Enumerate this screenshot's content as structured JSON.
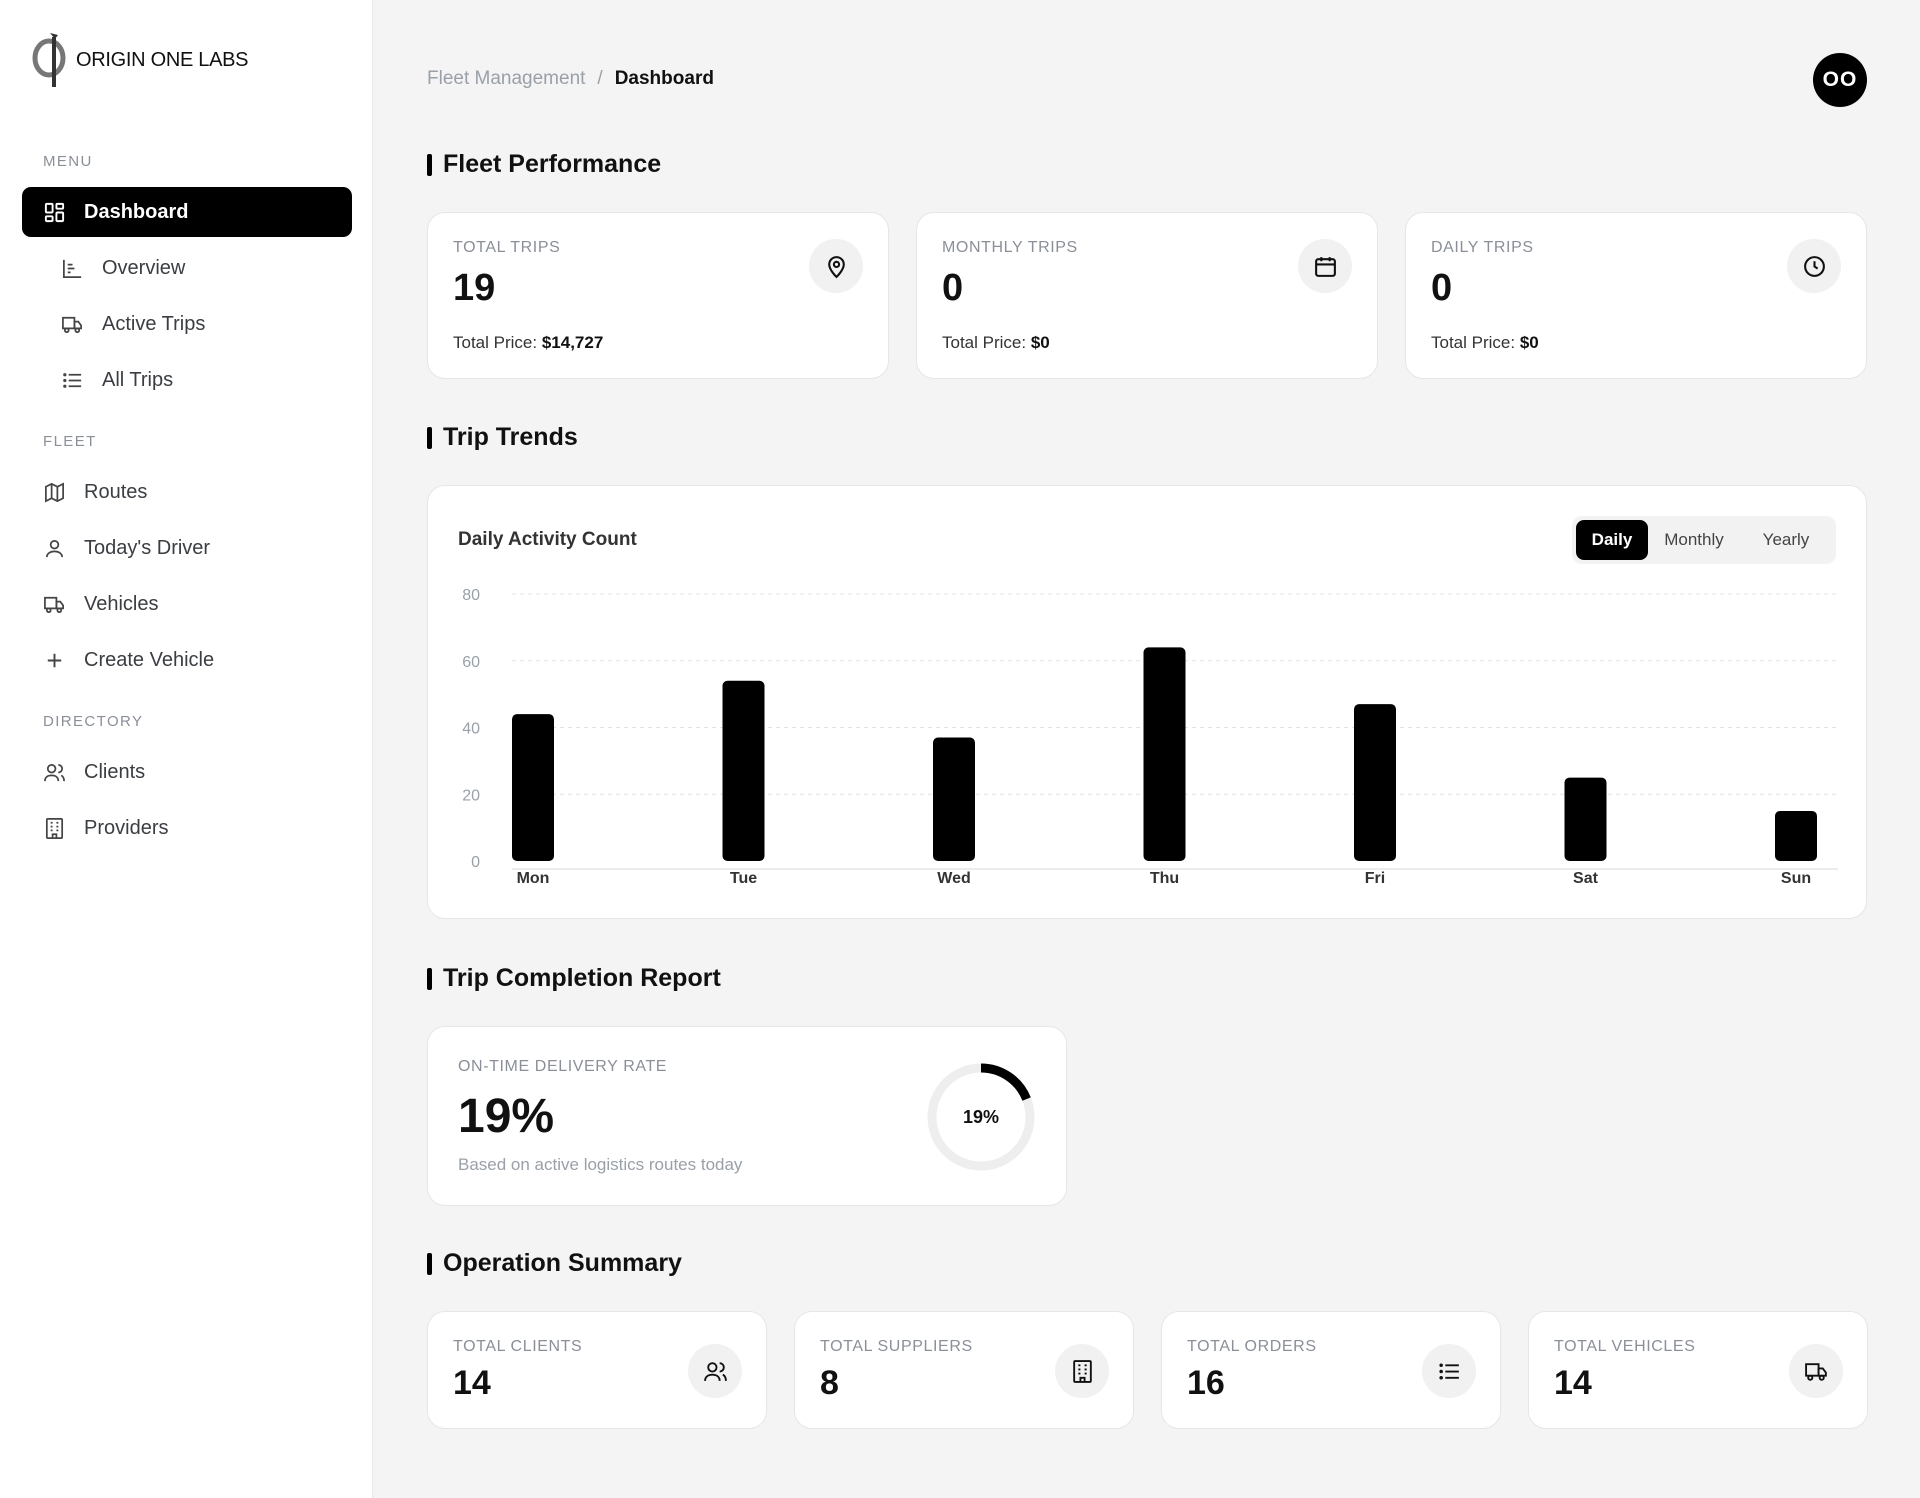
{
  "brand": {
    "name": "ORIGIN ONE LABS",
    "logo_icon": "origin-one-logo"
  },
  "sidebar": {
    "sections": [
      {
        "label": "MENU"
      },
      {
        "label": "FLEET"
      },
      {
        "label": "DIRECTORY"
      }
    ],
    "items": [
      {
        "label": "Dashboard",
        "icon": "dashboard-icon",
        "active": true
      },
      {
        "label": "Overview",
        "icon": "chart-icon"
      },
      {
        "label": "Active Trips",
        "icon": "truck-icon"
      },
      {
        "label": "All Trips",
        "icon": "list-icon"
      },
      {
        "label": "Routes",
        "icon": "map-icon"
      },
      {
        "label": "Today's Driver",
        "icon": "user-icon"
      },
      {
        "label": "Vehicles",
        "icon": "truck-icon"
      },
      {
        "label": "Create Vehicle",
        "icon": "plus-icon"
      },
      {
        "label": "Clients",
        "icon": "users-icon"
      },
      {
        "label": "Providers",
        "icon": "building-icon"
      }
    ]
  },
  "header": {
    "breadcrumb": {
      "parent": "Fleet Management",
      "separator": "/",
      "current": "Dashboard"
    },
    "avatar_initials": "OO"
  },
  "fleet_performance": {
    "title": "Fleet Performance",
    "cards": [
      {
        "label": "TOTAL TRIPS",
        "value": "19",
        "price_label": "Total Price:",
        "price": "$14,727",
        "icon": "map-pin-icon"
      },
      {
        "label": "MONTHLY TRIPS",
        "value": "0",
        "price_label": "Total Price:",
        "price": "$0",
        "icon": "calendar-icon"
      },
      {
        "label": "DAILY TRIPS",
        "value": "0",
        "price_label": "Total Price:",
        "price": "$0",
        "icon": "clock-icon"
      }
    ]
  },
  "trip_trends": {
    "title": "Trip Trends",
    "chart_title": "Daily Activity Count",
    "tabs": [
      "Daily",
      "Monthly",
      "Yearly"
    ],
    "active_tab": "Daily"
  },
  "chart_data": {
    "type": "bar",
    "title": "Daily Activity Count",
    "categories": [
      "Mon",
      "Tue",
      "Wed",
      "Thu",
      "Fri",
      "Sat",
      "Sun"
    ],
    "values": [
      44,
      54,
      37,
      64,
      47,
      25,
      15
    ],
    "ylim": [
      0,
      80
    ],
    "yticks": [
      0,
      20,
      40,
      60,
      80
    ],
    "grid": true,
    "bar_color": "#000000"
  },
  "completion": {
    "title": "Trip Completion Report",
    "label": "ON-TIME DELIVERY RATE",
    "value": "19%",
    "percent": 19,
    "subtitle": "Based on active logistics routes today",
    "donut_label": "19%"
  },
  "operation_summary": {
    "title": "Operation Summary",
    "cards": [
      {
        "label": "TOTAL CLIENTS",
        "value": "14",
        "icon": "users-icon"
      },
      {
        "label": "TOTAL SUPPLIERS",
        "value": "8",
        "icon": "building-icon"
      },
      {
        "label": "TOTAL ORDERS",
        "value": "16",
        "icon": "list-icon"
      },
      {
        "label": "TOTAL VEHICLES",
        "value": "14",
        "icon": "truck-icon"
      }
    ]
  }
}
